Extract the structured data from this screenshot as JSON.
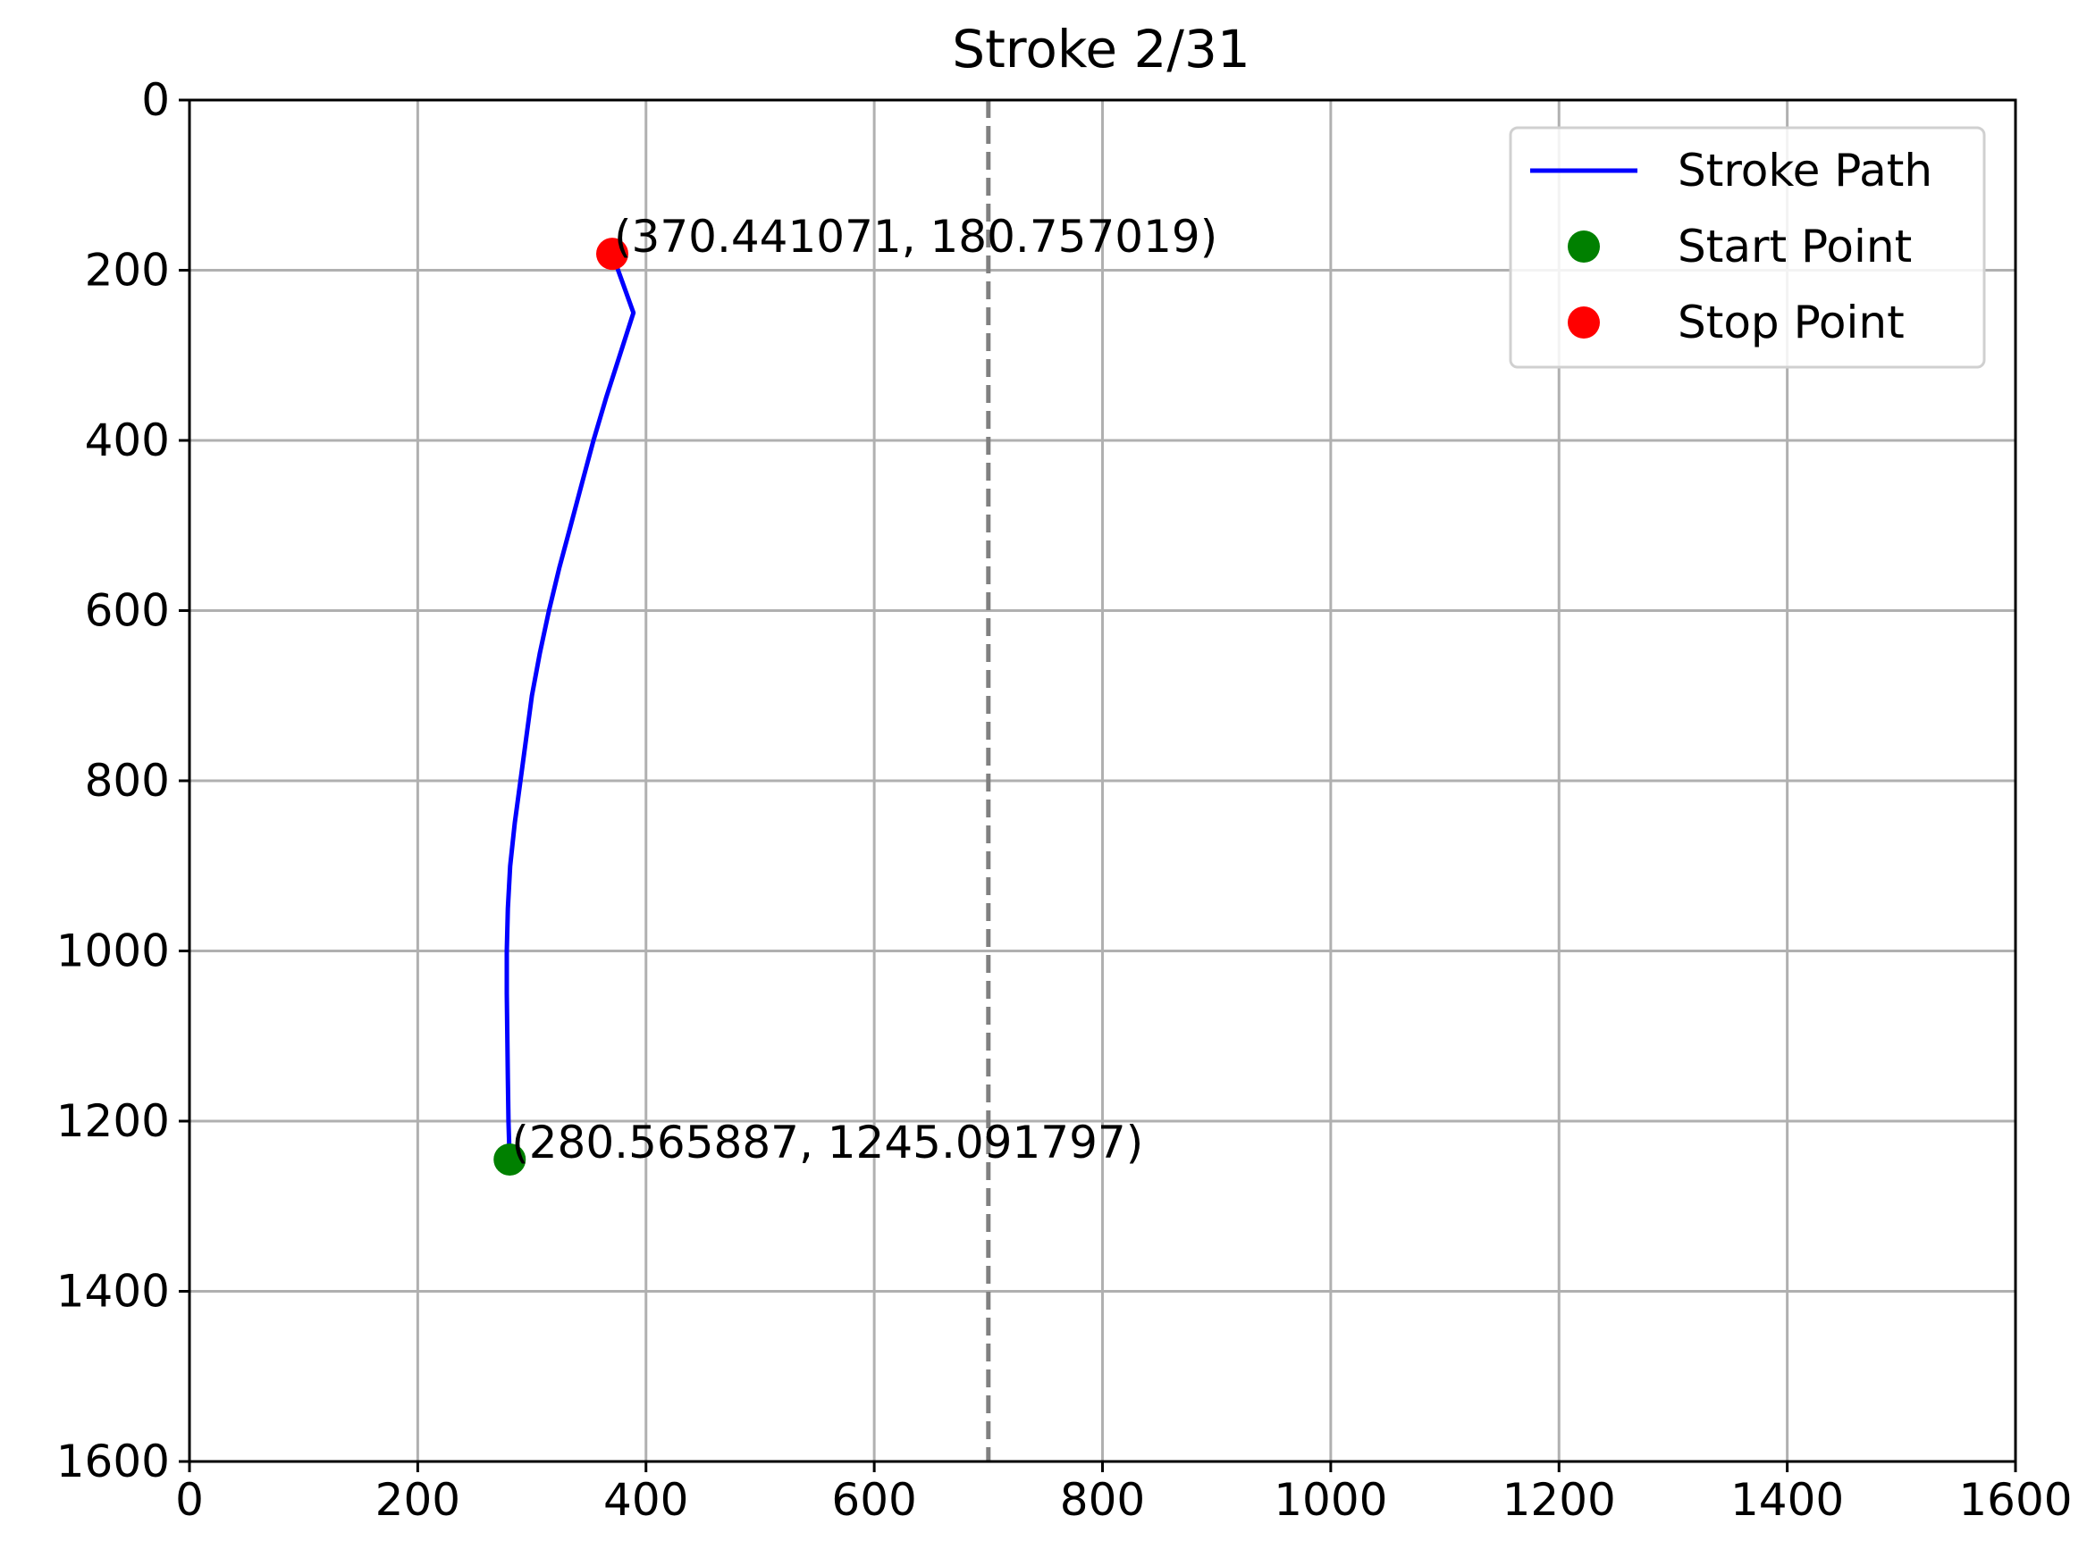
{
  "chart_data": {
    "type": "line",
    "title": "Stroke 2/31",
    "xlabel": "",
    "ylabel": "",
    "xlim": [
      0,
      1600
    ],
    "ylim": [
      1600,
      0
    ],
    "y_inverted": true,
    "grid": true,
    "x_ticks": [
      "0",
      "200",
      "400",
      "600",
      "800",
      "1000",
      "1200",
      "1400",
      "1600"
    ],
    "y_ticks": [
      "0",
      "200",
      "400",
      "600",
      "800",
      "1000",
      "1200",
      "1400",
      "1600"
    ],
    "reference_line": {
      "x": 700,
      "style": "dashed",
      "color": "#808080"
    },
    "legend": {
      "placement": "top-right",
      "entries": [
        "Stroke Path",
        "Start Point",
        "Stop Point"
      ]
    },
    "series": [
      {
        "name": "Stroke Path",
        "color": "#0000ff",
        "points": [
          [
            280.566,
            1245.092
          ],
          [
            279.5,
            1200
          ],
          [
            279,
            1150
          ],
          [
            278.5,
            1100
          ],
          [
            278,
            1050
          ],
          [
            278,
            1000
          ],
          [
            279,
            950
          ],
          [
            281,
            900
          ],
          [
            285,
            850
          ],
          [
            290,
            800
          ],
          [
            295,
            750
          ],
          [
            300,
            700
          ],
          [
            307,
            650
          ],
          [
            315,
            600
          ],
          [
            324,
            550
          ],
          [
            334,
            500
          ],
          [
            344,
            450
          ],
          [
            354,
            400
          ],
          [
            365,
            350
          ],
          [
            377,
            300
          ],
          [
            389,
            250
          ],
          [
            370.441,
            180.757
          ]
        ]
      },
      {
        "name": "Start Point",
        "color": "#008000",
        "points": [
          [
            280.565887,
            1245.091797
          ]
        ]
      },
      {
        "name": "Stop Point",
        "color": "#ff0000",
        "points": [
          [
            370.441071,
            180.757019
          ]
        ]
      }
    ],
    "annotations": [
      {
        "text": "(370.441071, 180.757019)",
        "x": 370.441071,
        "y": 180.757019
      },
      {
        "text": "(280.565887, 1245.091797)",
        "x": 280.565887,
        "y": 1245.091797
      }
    ]
  }
}
